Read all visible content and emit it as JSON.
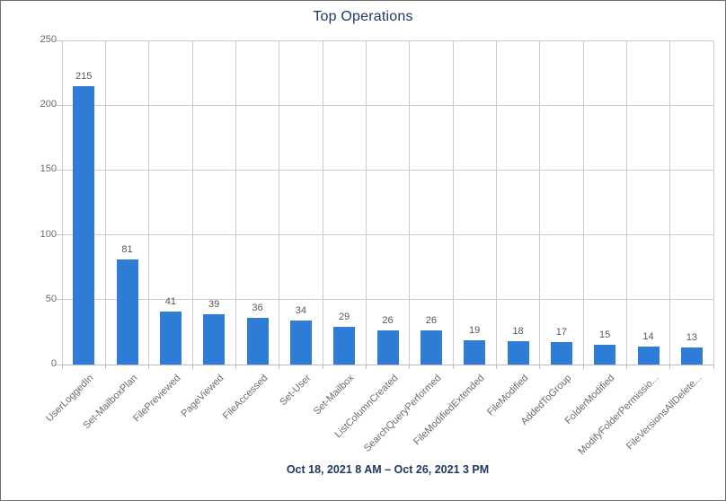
{
  "title": "Top Operations",
  "caption": "Oct 18, 2021 8 AM – Oct 26, 2021 3 PM",
  "colors": {
    "bar": "#2E7CD6",
    "title_text": "#1F3864",
    "caption_text": "#1F3864",
    "gridline": "#CDCDCD",
    "axis_line": "#B3BFCA",
    "tick_label": "#6B6B6B",
    "value_label": "#575757"
  },
  "chart_data": {
    "type": "bar",
    "title": "Top Operations",
    "categories": [
      "UserLoggedIn",
      "Set-MailboxPlan",
      "FilePreviewed",
      "PageViewed",
      "FileAccessed",
      "Set-User",
      "Set-Mailbox",
      "ListColumnCreated",
      "SearchQueryPerformed",
      "FileModifiedExtended",
      "FileModified",
      "AddedToGroup",
      "FolderModified",
      "ModifyFolderPermissio...",
      "FileVersionsAllDelete..."
    ],
    "values": [
      215,
      81,
      41,
      39,
      36,
      34,
      29,
      26,
      26,
      19,
      18,
      17,
      15,
      14,
      13
    ],
    "xlabel": "",
    "ylabel": "",
    "ylim": [
      0,
      250
    ],
    "yticks": [
      0,
      50,
      100,
      150,
      200,
      250
    ],
    "grid": "both",
    "legend": "none",
    "bar_labels_shown": true,
    "x_label_rotation_deg": 45,
    "subtitle": "Oct 18, 2021 8 AM – Oct 26, 2021 3 PM"
  }
}
